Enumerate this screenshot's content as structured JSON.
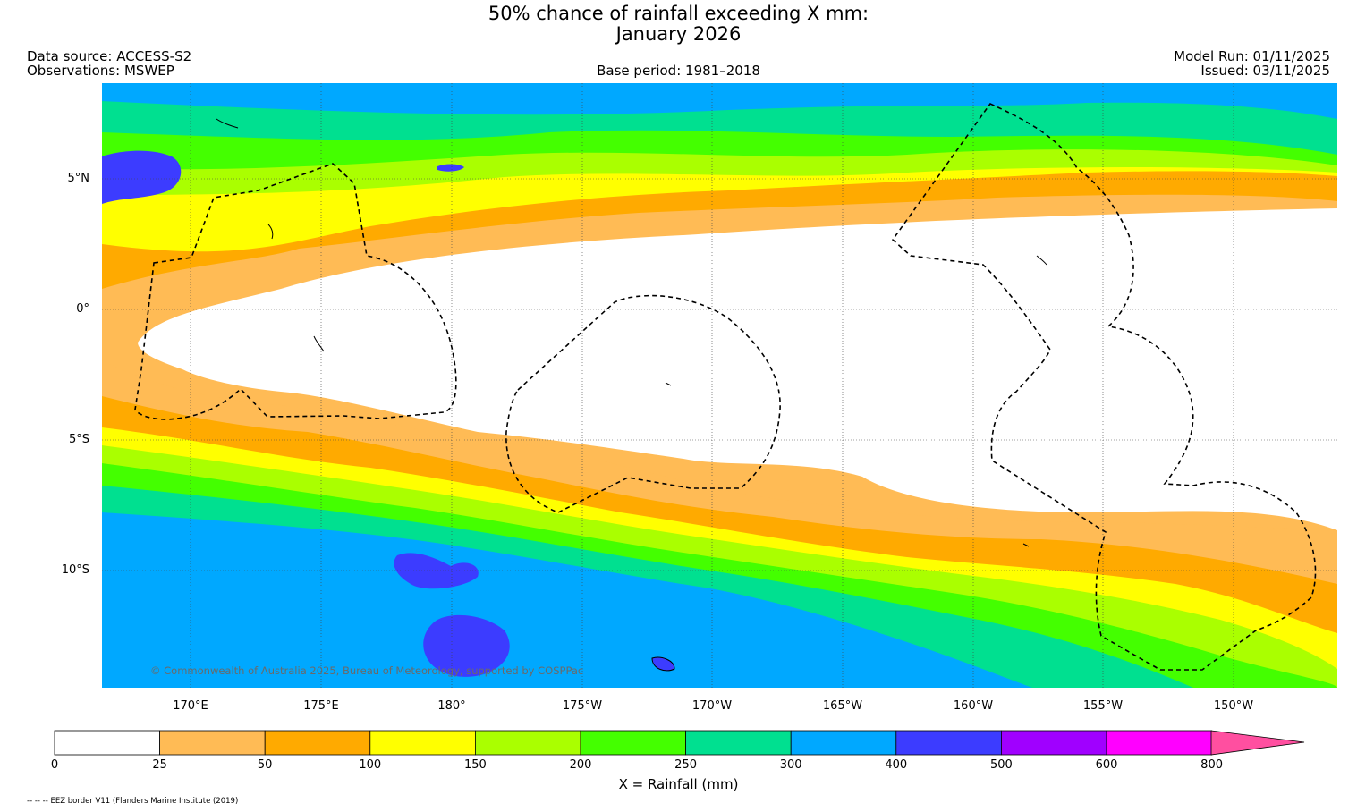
{
  "title": {
    "line1": "50% chance of rainfall exceeding X mm:",
    "line2": "January 2026"
  },
  "header": {
    "data_source": "Data source: ACCESS-S2",
    "observations": "Observations: MSWEP",
    "base_period": "Base period: 1981–2018",
    "model_run": "Model Run: 01/11/2025",
    "issued": "Issued: 03/11/2025"
  },
  "map": {
    "lat_labels": [
      "5°N",
      "0°",
      "5°S",
      "10°S"
    ],
    "lon_labels": [
      "170°E",
      "175°E",
      "180°",
      "175°W",
      "170°W",
      "165°W",
      "160°W",
      "155°W",
      "150°W"
    ],
    "credit": "© Commonwealth of Australia 2025, Bureau of Meteorology, supported by COSPPac"
  },
  "colorbar": {
    "title": "X = Rainfall (mm)",
    "ticks": [
      "0",
      "25",
      "50",
      "100",
      "150",
      "200",
      "250",
      "300",
      "400",
      "500",
      "600",
      "800"
    ],
    "colors": [
      "#ffffff",
      "#ffbb55",
      "#ffaa00",
      "#ffff00",
      "#aaff00",
      "#44ff00",
      "#00e090",
      "#00a8ff",
      "#3c3cff",
      "#a000ff",
      "#ff00ff"
    ],
    "extend_color": "#ff4fa0"
  },
  "footnote": "-- -- -- EEZ border V11 (Flanders Marine Institute (2019)"
}
